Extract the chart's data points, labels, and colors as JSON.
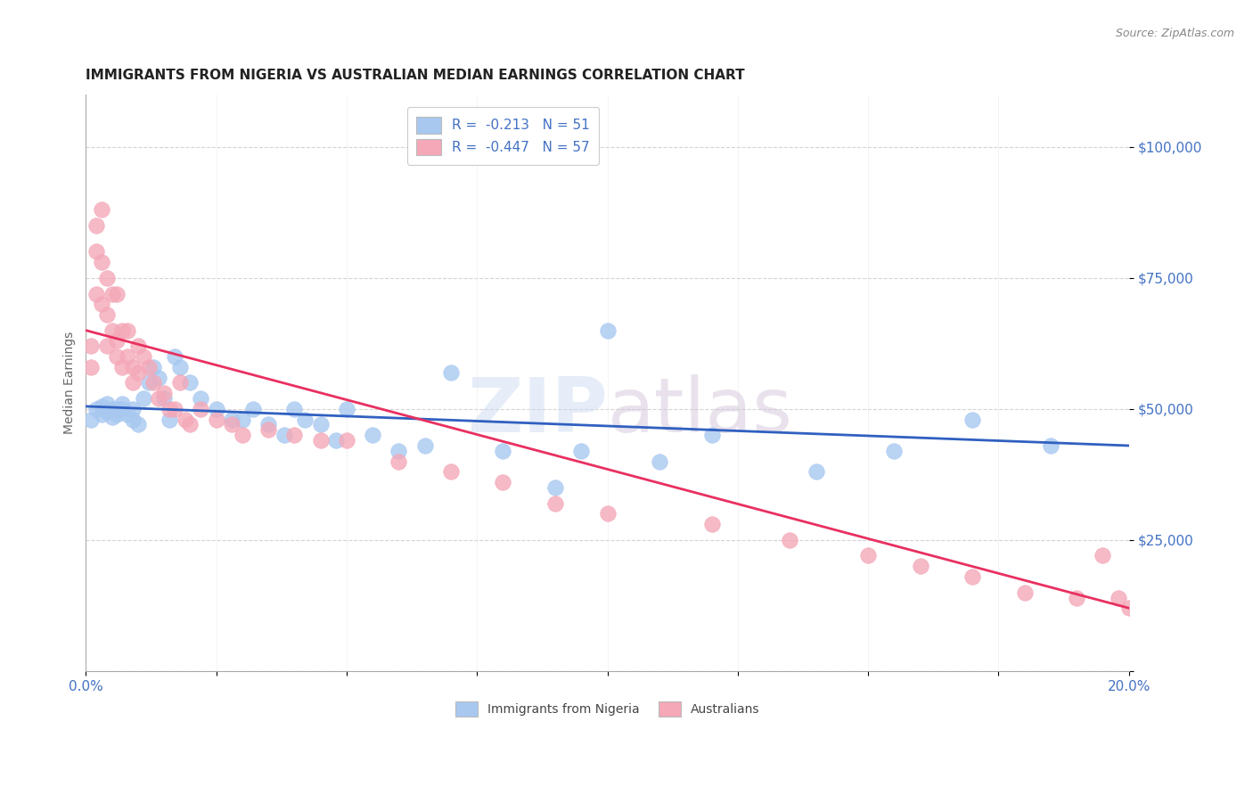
{
  "title": "IMMIGRANTS FROM NIGERIA VS AUSTRALIAN MEDIAN EARNINGS CORRELATION CHART",
  "source": "Source: ZipAtlas.com",
  "ylabel": "Median Earnings",
  "xlim": [
    0.0,
    0.2
  ],
  "ylim": [
    0,
    110000
  ],
  "yticks": [
    0,
    25000,
    50000,
    75000,
    100000
  ],
  "ytick_labels": [
    "",
    "$25,000",
    "$50,000",
    "$75,000",
    "$100,000"
  ],
  "xtick_labels": [
    "0.0%",
    "20.0%"
  ],
  "legend_blue_label": "R =  -0.213   N = 51",
  "legend_pink_label": "R =  -0.447   N = 57",
  "blue_color": "#A8C8F0",
  "pink_color": "#F4A8B8",
  "blue_line_color": "#3060C0",
  "pink_line_color": "#E83060",
  "axis_color": "#4472C4",
  "watermark_zip": "ZIP",
  "watermark_atlas": "atlas",
  "blue_scatter_x": [
    0.001,
    0.002,
    0.003,
    0.003,
    0.004,
    0.004,
    0.005,
    0.005,
    0.006,
    0.006,
    0.007,
    0.007,
    0.008,
    0.009,
    0.009,
    0.01,
    0.011,
    0.012,
    0.013,
    0.014,
    0.015,
    0.016,
    0.017,
    0.018,
    0.02,
    0.022,
    0.025,
    0.028,
    0.03,
    0.032,
    0.035,
    0.038,
    0.04,
    0.042,
    0.045,
    0.048,
    0.05,
    0.055,
    0.06,
    0.065,
    0.07,
    0.08,
    0.09,
    0.095,
    0.1,
    0.11,
    0.12,
    0.14,
    0.155,
    0.17,
    0.185
  ],
  "blue_scatter_y": [
    48000,
    50000,
    49000,
    50500,
    51000,
    49500,
    50000,
    48500,
    50000,
    49000,
    51000,
    50000,
    49000,
    48000,
    50000,
    47000,
    52000,
    55000,
    58000,
    56000,
    52000,
    48000,
    60000,
    58000,
    55000,
    52000,
    50000,
    48000,
    48000,
    50000,
    47000,
    45000,
    50000,
    48000,
    47000,
    44000,
    50000,
    45000,
    42000,
    43000,
    57000,
    42000,
    35000,
    42000,
    65000,
    40000,
    45000,
    38000,
    42000,
    48000,
    43000
  ],
  "pink_scatter_x": [
    0.001,
    0.001,
    0.002,
    0.002,
    0.002,
    0.003,
    0.003,
    0.003,
    0.004,
    0.004,
    0.004,
    0.005,
    0.005,
    0.006,
    0.006,
    0.006,
    0.007,
    0.007,
    0.008,
    0.008,
    0.009,
    0.009,
    0.01,
    0.01,
    0.011,
    0.012,
    0.013,
    0.014,
    0.015,
    0.016,
    0.017,
    0.018,
    0.019,
    0.02,
    0.022,
    0.025,
    0.028,
    0.03,
    0.035,
    0.04,
    0.045,
    0.05,
    0.06,
    0.07,
    0.08,
    0.09,
    0.1,
    0.12,
    0.135,
    0.15,
    0.16,
    0.17,
    0.18,
    0.19,
    0.195,
    0.198,
    0.2
  ],
  "pink_scatter_y": [
    62000,
    58000,
    85000,
    80000,
    72000,
    88000,
    78000,
    70000,
    75000,
    68000,
    62000,
    72000,
    65000,
    63000,
    72000,
    60000,
    65000,
    58000,
    65000,
    60000,
    58000,
    55000,
    62000,
    57000,
    60000,
    58000,
    55000,
    52000,
    53000,
    50000,
    50000,
    55000,
    48000,
    47000,
    50000,
    48000,
    47000,
    45000,
    46000,
    45000,
    44000,
    44000,
    40000,
    38000,
    36000,
    32000,
    30000,
    28000,
    25000,
    22000,
    20000,
    18000,
    15000,
    14000,
    22000,
    14000,
    12000
  ],
  "title_fontsize": 11,
  "label_fontsize": 10,
  "tick_fontsize": 11,
  "source_fontsize": 9,
  "legend_fontsize": 11
}
